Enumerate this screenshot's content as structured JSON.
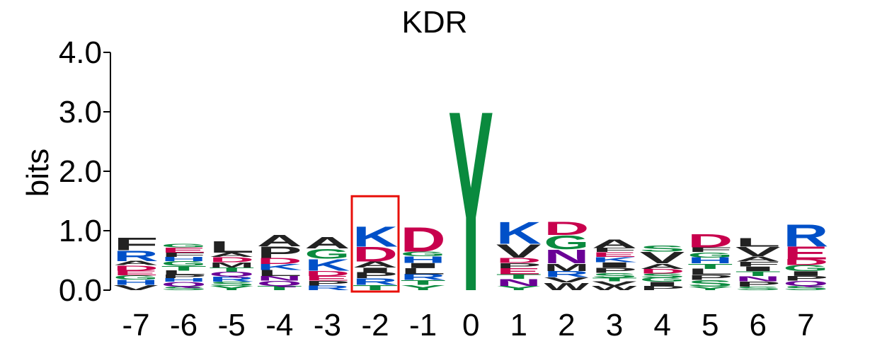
{
  "colors": {
    "A": "#222222",
    "C": "#0a8a3e",
    "D": "#c8004d",
    "E": "#c8004d",
    "F": "#222222",
    "G": "#0a8a3e",
    "H": "#0050c8",
    "I": "#222222",
    "K": "#0050c8",
    "L": "#222222",
    "M": "#222222",
    "N": "#6a0096",
    "P": "#222222",
    "Q": "#6a0096",
    "R": "#0050c8",
    "S": "#0a8a3e",
    "T": "#0a8a3e",
    "V": "#222222",
    "W": "#222222",
    "Y": "#0a8a3e",
    "axis": "#000000",
    "highlight": "#e8100b"
  },
  "chart_data": {
    "type": "sequence-logo",
    "title": "KDR",
    "ylabel": "bits",
    "ylim": [
      0,
      4
    ],
    "yticks": [
      {
        "value": 0,
        "label": "0.0"
      },
      {
        "value": 1,
        "label": "1.0"
      },
      {
        "value": 2,
        "label": "2.0"
      },
      {
        "value": 3,
        "label": "3.0"
      },
      {
        "value": 4,
        "label": "4.0"
      }
    ],
    "highlight_position": "-2",
    "highlight_top": 1.58,
    "positions": [
      {
        "label": "-7",
        "letters": [
          {
            "aa": "V",
            "bits": 0.09
          },
          {
            "aa": "H",
            "bits": 0.09
          },
          {
            "aa": "G",
            "bits": 0.07
          },
          {
            "aa": "E",
            "bits": 0.08
          },
          {
            "aa": "D",
            "bits": 0.09
          },
          {
            "aa": "A",
            "bits": 0.07
          },
          {
            "aa": "R",
            "bits": 0.18
          },
          {
            "aa": "F",
            "bits": 0.21
          }
        ]
      },
      {
        "label": "-6",
        "letters": [
          {
            "aa": "S",
            "bits": 0.06
          },
          {
            "aa": "Q",
            "bits": 0.08
          },
          {
            "aa": "H",
            "bits": 0.06
          },
          {
            "aa": "P",
            "bits": 0.06
          },
          {
            "aa": "L",
            "bits": 0.07
          },
          {
            "aa": "T",
            "bits": 0.08
          },
          {
            "aa": "G",
            "bits": 0.08
          },
          {
            "aa": "H",
            "bits": 0.07
          },
          {
            "aa": "F",
            "bits": 0.07
          },
          {
            "aa": "E",
            "bits": 0.09
          },
          {
            "aa": "G",
            "bits": 0.06
          }
        ]
      },
      {
        "label": "-5",
        "letters": [
          {
            "aa": "Y",
            "bits": 0.07
          },
          {
            "aa": "S",
            "bits": 0.07
          },
          {
            "aa": "R",
            "bits": 0.09
          },
          {
            "aa": "Q",
            "bits": 0.08
          },
          {
            "aa": "T",
            "bits": 0.07
          },
          {
            "aa": "M",
            "bits": 0.09
          },
          {
            "aa": "D",
            "bits": 0.09
          },
          {
            "aa": "A",
            "bits": 0.07
          },
          {
            "aa": "L",
            "bits": 0.2
          }
        ]
      },
      {
        "label": "-4",
        "letters": [
          {
            "aa": "T",
            "bits": 0.07
          },
          {
            "aa": "Q",
            "bits": 0.09
          },
          {
            "aa": "N",
            "bits": 0.08
          },
          {
            "aa": "L",
            "bits": 0.1
          },
          {
            "aa": "K",
            "bits": 0.1
          },
          {
            "aa": "D",
            "bits": 0.1
          },
          {
            "aa": "P",
            "bits": 0.2
          },
          {
            "aa": "A",
            "bits": 0.2
          }
        ]
      },
      {
        "label": "-3",
        "letters": [
          {
            "aa": "R",
            "bits": 0.08
          },
          {
            "aa": "P",
            "bits": 0.08
          },
          {
            "aa": "E",
            "bits": 0.08
          },
          {
            "aa": "D",
            "bits": 0.09
          },
          {
            "aa": "K",
            "bits": 0.2
          },
          {
            "aa": "G",
            "bits": 0.17
          },
          {
            "aa": "A",
            "bits": 0.2
          }
        ]
      },
      {
        "label": "-2",
        "letters": [
          {
            "aa": "T",
            "bits": 0.09
          },
          {
            "aa": "R",
            "bits": 0.11
          },
          {
            "aa": "P",
            "bits": 0.1
          },
          {
            "aa": "I",
            "bits": 0.08
          },
          {
            "aa": "A",
            "bits": 0.1
          },
          {
            "aa": "D",
            "bits": 0.25
          },
          {
            "aa": "K",
            "bits": 0.35
          }
        ]
      },
      {
        "label": "-1",
        "letters": [
          {
            "aa": "Y",
            "bits": 0.09
          },
          {
            "aa": "T",
            "bits": 0.08
          },
          {
            "aa": "R",
            "bits": 0.1
          },
          {
            "aa": "L",
            "bits": 0.1
          },
          {
            "aa": "I",
            "bits": 0.09
          },
          {
            "aa": "H",
            "bits": 0.11
          },
          {
            "aa": "G",
            "bits": 0.08
          },
          {
            "aa": "D",
            "bits": 0.42
          }
        ]
      },
      {
        "label": "0",
        "letters": [
          {
            "aa": "Y",
            "bits": 3.12
          }
        ]
      },
      {
        "label": "1",
        "letters": [
          {
            "aa": "Y",
            "bits": 0.07
          },
          {
            "aa": "N",
            "bits": 0.12
          },
          {
            "aa": "T",
            "bits": 0.08
          },
          {
            "aa": "E",
            "bits": 0.1
          },
          {
            "aa": "P",
            "bits": 0.09
          },
          {
            "aa": "D",
            "bits": 0.09
          },
          {
            "aa": "V",
            "bits": 0.23
          },
          {
            "aa": "K",
            "bits": 0.38
          }
        ]
      },
      {
        "label": "2",
        "letters": [
          {
            "aa": "W",
            "bits": 0.13
          },
          {
            "aa": "V",
            "bits": 0.09
          },
          {
            "aa": "R",
            "bits": 0.1
          },
          {
            "aa": "M",
            "bits": 0.13
          },
          {
            "aa": "N",
            "bits": 0.24
          },
          {
            "aa": "G",
            "bits": 0.24
          },
          {
            "aa": "D",
            "bits": 0.23
          }
        ]
      },
      {
        "label": "3",
        "letters": [
          {
            "aa": "W",
            "bits": 0.07
          },
          {
            "aa": "V",
            "bits": 0.08
          },
          {
            "aa": "T",
            "bits": 0.06
          },
          {
            "aa": "S",
            "bits": 0.08
          },
          {
            "aa": "P",
            "bits": 0.09
          },
          {
            "aa": "I",
            "bits": 0.09
          },
          {
            "aa": "K",
            "bits": 0.09
          },
          {
            "aa": "E",
            "bits": 0.08
          },
          {
            "aa": "F",
            "bits": 0.07
          },
          {
            "aa": "A",
            "bits": 0.15
          }
        ]
      },
      {
        "label": "4",
        "letters": [
          {
            "aa": "P",
            "bits": 0.07
          },
          {
            "aa": "I",
            "bits": 0.07
          },
          {
            "aa": "G",
            "bits": 0.07
          },
          {
            "aa": "S",
            "bits": 0.07
          },
          {
            "aa": "D",
            "bits": 0.08
          },
          {
            "aa": "A",
            "bits": 0.09
          },
          {
            "aa": "V",
            "bits": 0.2
          },
          {
            "aa": "S",
            "bits": 0.1
          }
        ]
      },
      {
        "label": "5",
        "letters": [
          {
            "aa": "Y",
            "bits": 0.06
          },
          {
            "aa": "S",
            "bits": 0.11
          },
          {
            "aa": "P",
            "bits": 0.09
          },
          {
            "aa": "L",
            "bits": 0.1
          },
          {
            "aa": "T",
            "bits": 0.09
          },
          {
            "aa": "H",
            "bits": 0.1
          },
          {
            "aa": "G",
            "bits": 0.09
          },
          {
            "aa": "F",
            "bits": 0.08
          },
          {
            "aa": "D",
            "bits": 0.23
          }
        ]
      },
      {
        "label": "6",
        "letters": [
          {
            "aa": "S",
            "bits": 0.06
          },
          {
            "aa": "P",
            "bits": 0.09
          },
          {
            "aa": "N",
            "bits": 0.09
          },
          {
            "aa": "T",
            "bits": 0.08
          },
          {
            "aa": "I",
            "bits": 0.08
          },
          {
            "aa": "F",
            "bits": 0.08
          },
          {
            "aa": "A",
            "bits": 0.09
          },
          {
            "aa": "V",
            "bits": 0.16
          },
          {
            "aa": "L",
            "bits": 0.15
          }
        ]
      },
      {
        "label": "7",
        "letters": [
          {
            "aa": "S",
            "bits": 0.07
          },
          {
            "aa": "Q",
            "bits": 0.09
          },
          {
            "aa": "P",
            "bits": 0.08
          },
          {
            "aa": "I",
            "bits": 0.08
          },
          {
            "aa": "G",
            "bits": 0.1
          },
          {
            "aa": "D",
            "bits": 0.1
          },
          {
            "aa": "E",
            "bits": 0.22
          },
          {
            "aa": "R",
            "bits": 0.38
          }
        ]
      }
    ]
  }
}
